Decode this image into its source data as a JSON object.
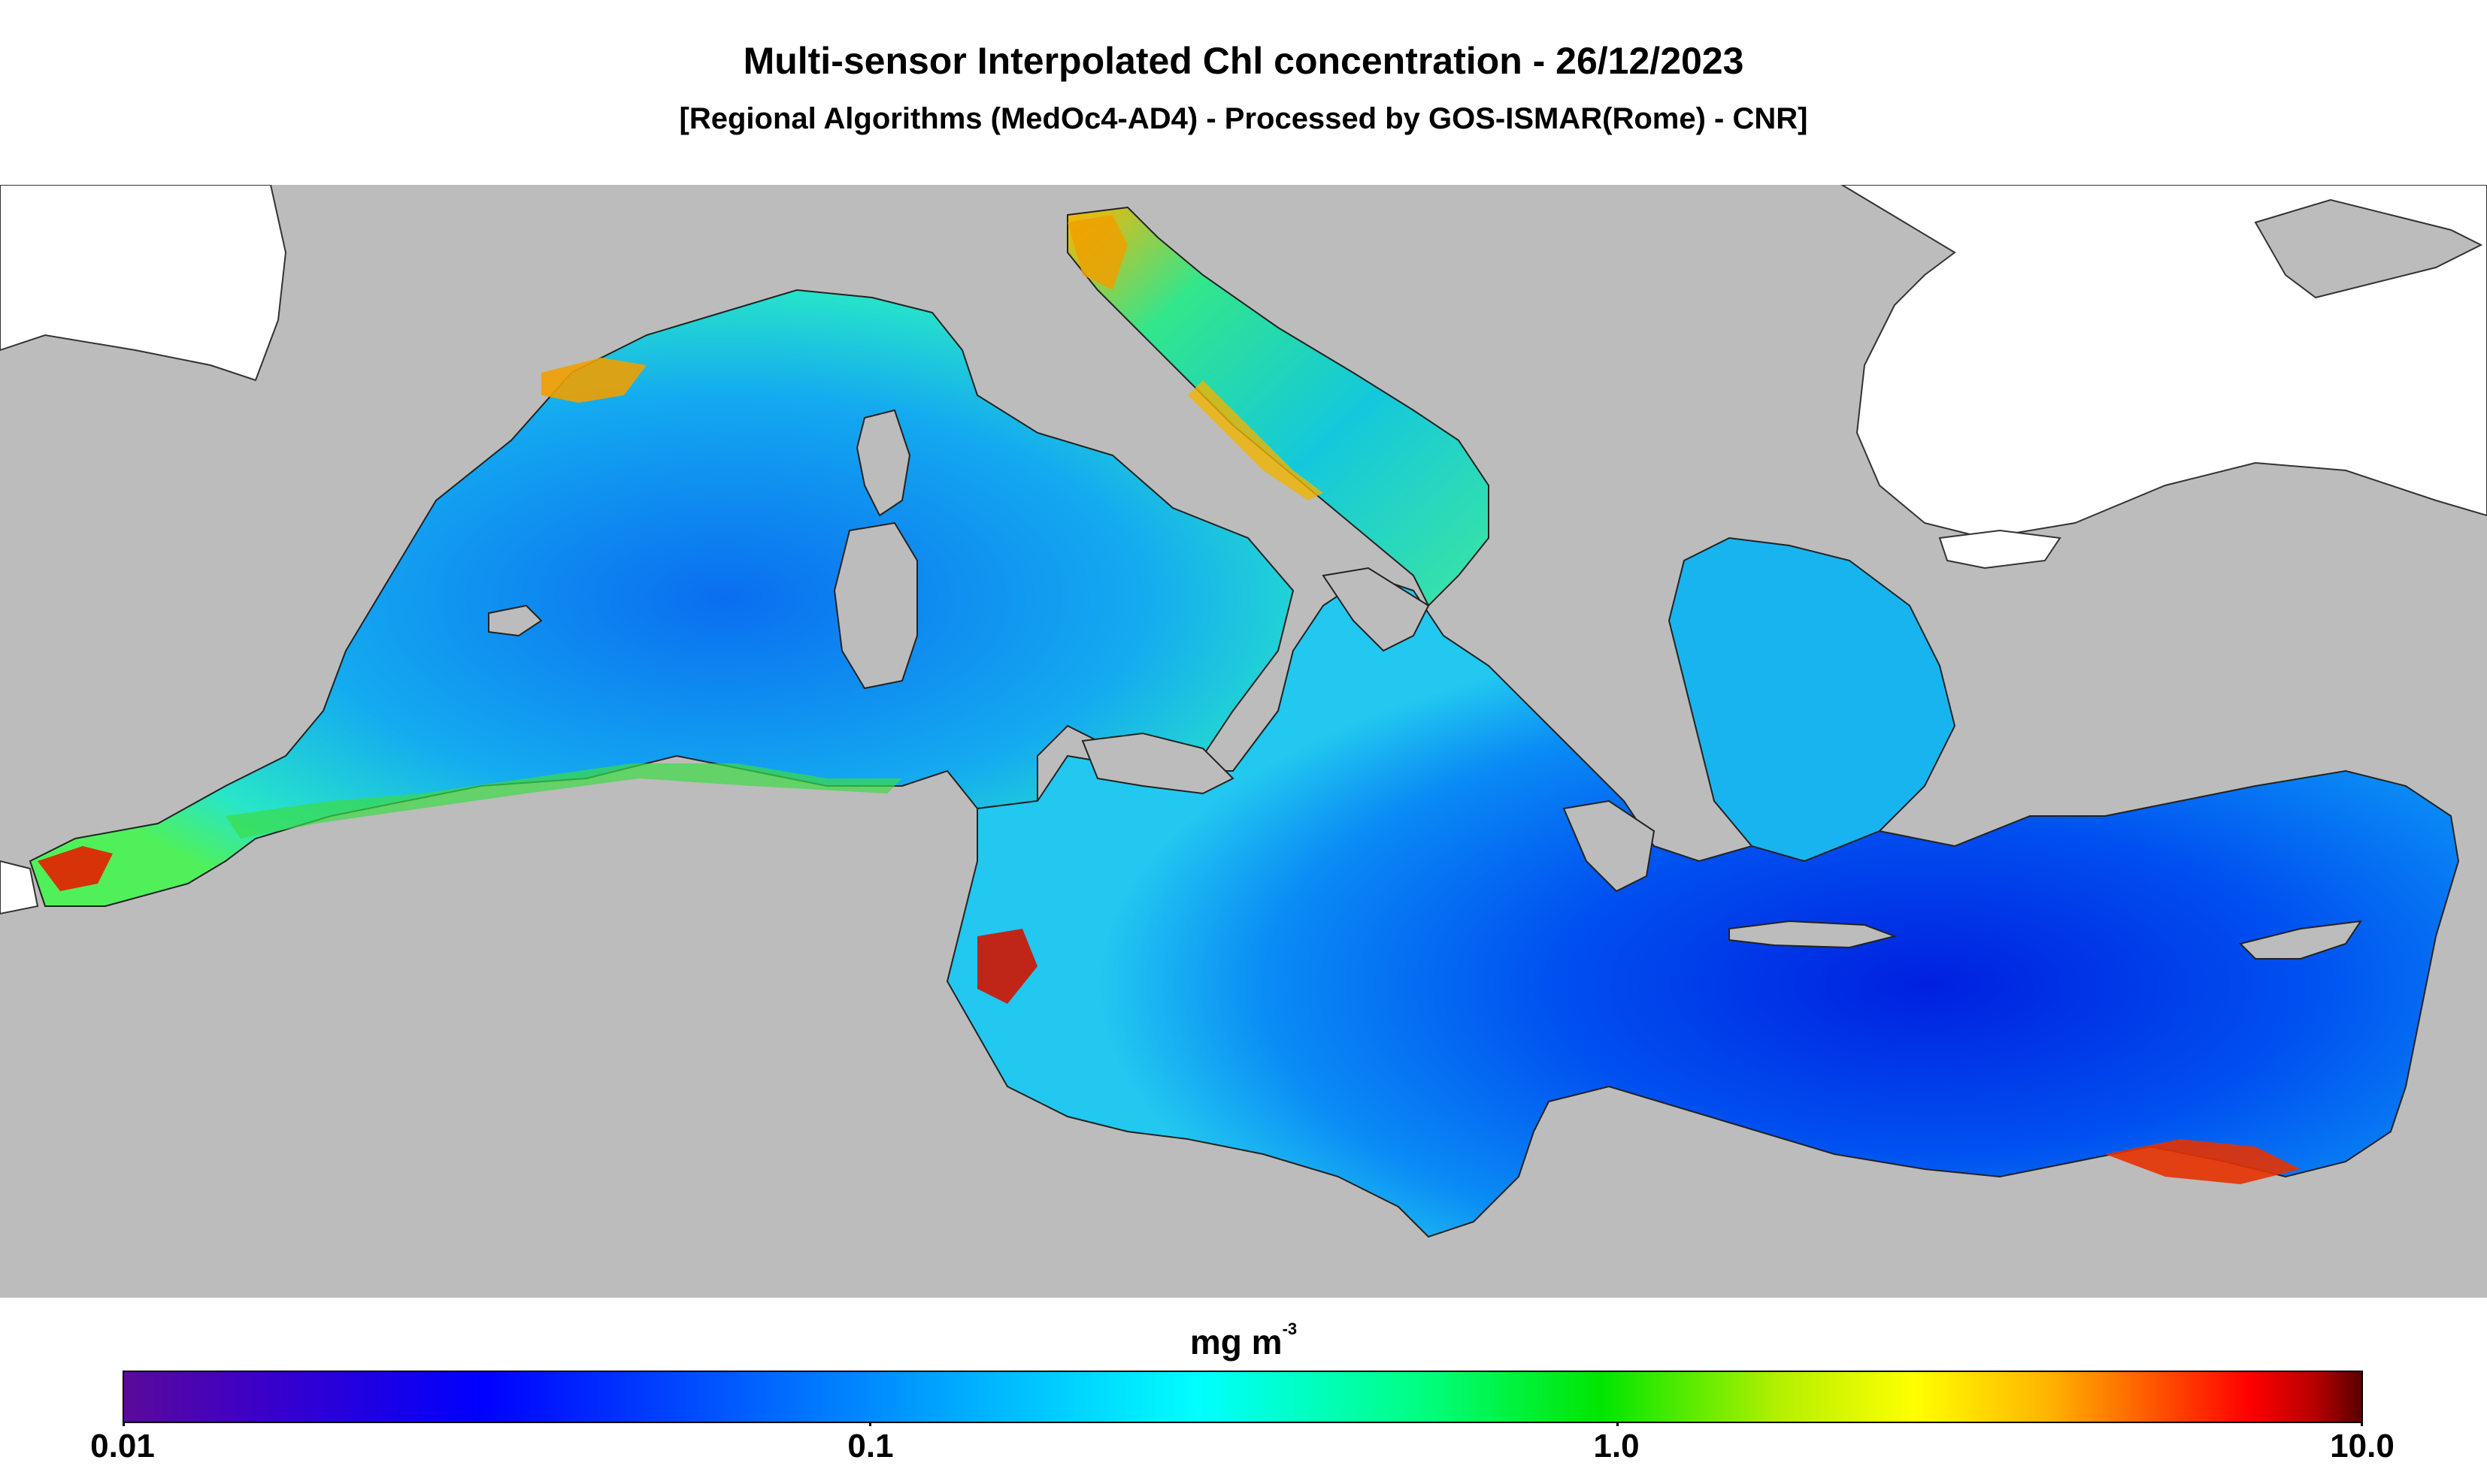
{
  "title": "Multi-sensor Interpolated Chl concentration - 26/12/2023",
  "subtitle": "[Regional Algorithms (MedOc4-AD4) - Processed by GOS-ISMAR(Rome) - CNR]",
  "colorbar": {
    "units": "mg m",
    "units_exponent": "-3",
    "scale": "log",
    "range": [
      0.01,
      10.0
    ],
    "tick_labels": [
      "0.01",
      "0.1",
      "1.0",
      "10.0"
    ]
  },
  "colors": {
    "land": "#bcbcbc",
    "black_sea": "#ffffff",
    "open_sea_low_chl": "#0a46e6",
    "coastal_high_chl": "#e61e00"
  }
}
